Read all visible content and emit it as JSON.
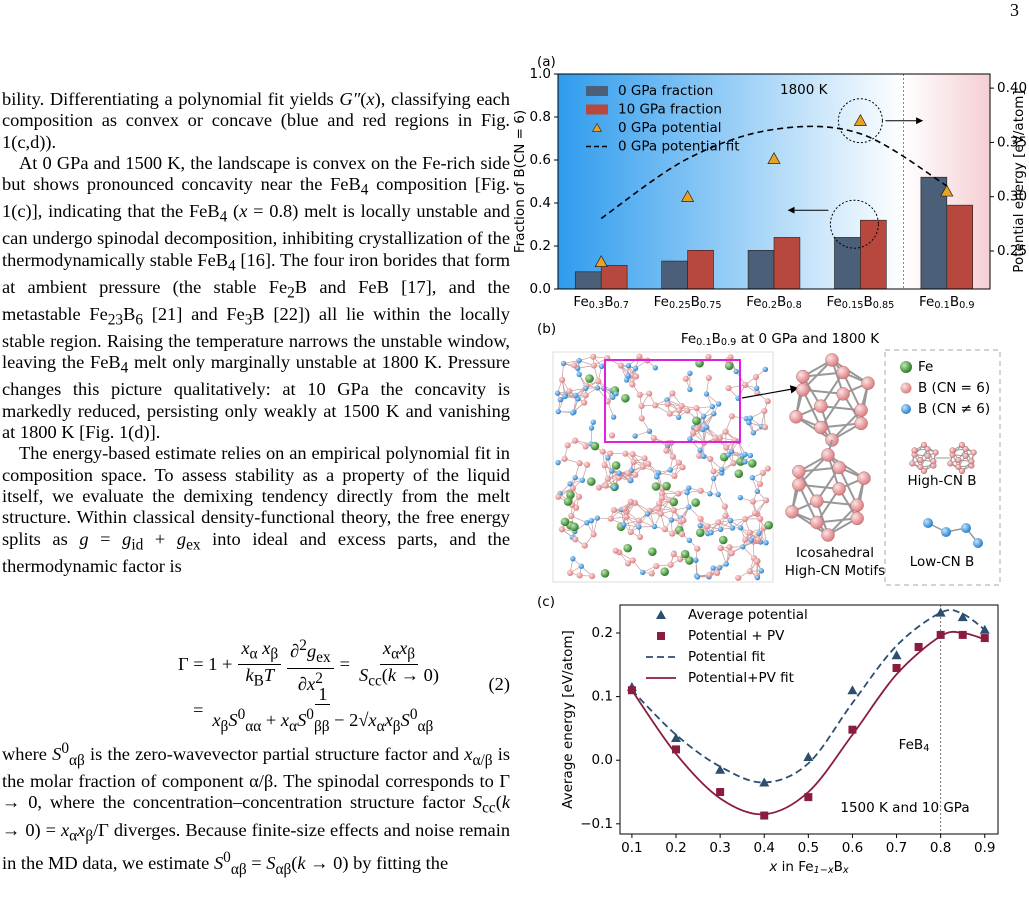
{
  "page_number": "3",
  "body": {
    "paragraphs": [
      "bility. Differentiating a polynomial fit yields <i>G″</i>(<i>x</i>), classifying each composition as convex or concave (blue and red regions in Fig. 1(c,d)).",
      "At 0 GPa and 1500 K, the landscape is convex on the Fe-rich side but shows pronounced concavity near the FeB<sub>4</sub> composition [Fig. 1(c)], indicating that the FeB<sub>4</sub> (<i>x</i> = 0.8) melt is locally unstable and can undergo spinodal decomposition, inhibiting crystallization of the thermodynamically stable FeB<sub>4</sub> [16]. The four iron borides that form at ambient pressure (the stable Fe<sub>2</sub>B and FeB [17], and the metastable Fe<sub>23</sub>B<sub>6</sub> [21] and Fe<sub>3</sub>B [22]) all lie within the locally stable region. Raising the temperature narrows the unstable window, leaving the FeB<sub>4</sub> melt only marginally unstable at 1800 K. Pressure changes this picture qualitatively: at 10 GPa the concavity is markedly reduced, persisting only weakly at 1500 K and vanishing at 1800 K [Fig. 1(d)].",
      "The energy-based estimate relies on an empirical polynomial fit in composition space. To assess stability as a property of the liquid itself, we evaluate the demixing tendency directly from the melt structure. Within classical density-functional theory, the free energy splits as <i>g</i> = <i>g</i><sub>id</sub> + <i>g</i><sub>ex</sub> into ideal and excess parts, and the thermodynamic factor is"
    ],
    "equation": {
      "lhs": "Γ = 1 +",
      "frac1_num": "<i>x</i><sub>α</sub> <i>x</i><sub>β</sub>",
      "frac1_den": "<i>k</i><sub>B</sub><i>T</i>",
      "frac2_num": "∂<sup>2</sup><i>g</i><sub>ex</sub>",
      "frac2_den": "∂<i>x</i><sup>2</sup>",
      "eq1": "=",
      "frac3_num": "<i>x</i><sub>α</sub><i>x</i><sub>β</sub>",
      "frac3_den": "<i>S</i><sub>cc</sub>(<i>k</i> → 0)",
      "eq2": "=",
      "frac4_num": "1",
      "frac4_den": "<i>x</i><sub>β</sub><i>S</i><sup>0</sup><sub>αα</sub> + <i>x</i><sub>α</sub><i>S</i><sup>0</sup><sub>ββ</sub> − 2√<i>x</i><sub>α</sub><i>x</i><sub>β</sub><i>S</i><sup>0</sup><sub>αβ</sub>",
      "number": "(2)"
    },
    "after": [
      "where <i>S</i><sup>0</sup><sub>αβ</sub> is the zero-wavevector partial structure factor and <i>x</i><sub>α/β</sub> is the molar fraction of component α/β. The spinodal corresponds to Γ → 0, where the concentration–concentration structure factor <i>S</i><sub>cc</sub>(<i>k</i> → 0) = <i>x</i><sub>α</sub><i>x</i><sub>β</sub>/Γ diverges. Because finite-size effects and noise remain in the MD data, we estimate <i>S</i><sup>0</sup><sub>αβ</sub> = <i>S</i><sub>αβ</sub>(<i>k</i> → 0) by fitting the"
    ]
  },
  "figure": {
    "panel_a": {
      "type": "bar",
      "label": "(a)",
      "annotation": "1800 K",
      "ylabel": "Fraction of B(CN = 6)",
      "y2label": "Potential energy [eV/atom]",
      "categories": [
        "Fe<sub>0.3</sub>B<sub>0.7</sub>",
        "Fe<sub>0.25</sub>B<sub>0.75</sub>",
        "Fe<sub>0.2</sub>B<sub>0.8</sub>",
        "Fe<sub>0.15</sub>B<sub>0.85</sub>",
        "Fe<sub>0.1</sub>B<sub>0.9</sub>"
      ],
      "ylim": [
        0,
        1.0
      ],
      "yticks": [
        {
          "value": 0,
          "label": "0.0"
        },
        0.2,
        0.4,
        0.6,
        0.8,
        {
          "value": 1,
          "label": "1.0"
        }
      ],
      "y2lim": [
        0.215,
        0.413
      ],
      "y2ticks": [
        0.25,
        {
          "value": 0.3,
          "label": "0.30"
        },
        0.35,
        {
          "value": 0.4,
          "label": "0.40"
        }
      ],
      "series": [
        {
          "name": "0 GPa fraction",
          "type": "bar",
          "color": "#4b5f78",
          "values": [
            0.08,
            0.13,
            0.18,
            0.24,
            0.52
          ]
        },
        {
          "name": "10 GPa fraction",
          "type": "bar",
          "color": "#b8483d",
          "values": [
            0.11,
            0.18,
            0.24,
            0.32,
            0.39
          ]
        },
        {
          "name": "0 GPa potential",
          "type": "scatter",
          "axis": "y2",
          "color": "#e8a323",
          "values": [
            0.24,
            0.3,
            0.335,
            0.37,
            0.305
          ]
        },
        {
          "name": "0 GPa potential fit",
          "type": "line",
          "axis": "y2",
          "color": "#000000",
          "values": [
            0.28,
            0.335,
            0.362,
            0.358,
            0.31
          ]
        }
      ]
    },
    "panel_b": {
      "label": "(b)",
      "title": "Fe<sub>0.1</sub>B<sub>0.9</sub> at 0 GPa and 1800 K",
      "legend": [
        "Fe",
        "B (CN = 6)",
        "B (CN ≠ 6)"
      ],
      "motif_label": [
        "Icosahedral",
        "High-CN Motifs"
      ],
      "high_cn": "High-CN B",
      "low_cn": "Low-CN B"
    },
    "panel_c": {
      "type": "line",
      "label": "(c)",
      "xlabel": "<i>x</i> in Fe<sub>1−<i>x</i></sub>B<sub><i>x</i></sub>",
      "ylabel": "Average energy [eV/atom]",
      "annotations": [
        "FeB<sub>4</sub>",
        "1500 K and 10 GPa"
      ],
      "vline": 0.8,
      "xlim": [
        0.073,
        0.93
      ],
      "xticks": [
        0.1,
        0.2,
        0.3,
        0.4,
        0.5,
        0.6,
        0.7,
        0.8,
        0.9
      ],
      "ylim": [
        -0.116,
        0.244
      ],
      "yticks": [
        {
          "value": -0.1,
          "label": "−0.1"
        },
        {
          "value": 0,
          "label": "0.0"
        },
        0.1,
        0.2
      ],
      "series": [
        {
          "name": "Average potential",
          "type": "scatter",
          "marker": "triangle",
          "color": "#2c4f70",
          "x": [
            0.1,
            0.2,
            0.3,
            0.4,
            0.5,
            0.6,
            0.7,
            0.8,
            0.85,
            0.9
          ],
          "values": [
            0.115,
            0.035,
            -0.015,
            -0.035,
            0.005,
            0.11,
            0.165,
            0.232,
            0.225,
            0.205
          ]
        },
        {
          "name": "Potential + PV",
          "type": "scatter",
          "marker": "square",
          "color": "#8a1c3e",
          "x": [
            0.1,
            0.2,
            0.3,
            0.4,
            0.5,
            0.6,
            0.7,
            0.75,
            0.8,
            0.85,
            0.9
          ],
          "values": [
            0.11,
            0.017,
            -0.05,
            -0.087,
            -0.058,
            0.048,
            0.145,
            0.178,
            0.197,
            0.197,
            0.192
          ]
        },
        {
          "name": "Potential fit",
          "type": "line",
          "dash": true,
          "color": "#2c4f70",
          "x": [
            0.1,
            0.2,
            0.3,
            0.4,
            0.5,
            0.6,
            0.7,
            0.8,
            0.85,
            0.9
          ],
          "values": [
            0.11,
            0.04,
            -0.01,
            -0.035,
            -0.005,
            0.09,
            0.18,
            0.232,
            0.23,
            0.205
          ]
        },
        {
          "name": "Potential+PV fit",
          "type": "line",
          "dash": false,
          "color": "#8a1c3e",
          "x": [
            0.1,
            0.2,
            0.3,
            0.4,
            0.5,
            0.6,
            0.7,
            0.8,
            0.85,
            0.9
          ],
          "values": [
            0.11,
            0.01,
            -0.06,
            -0.085,
            -0.05,
            0.04,
            0.135,
            0.195,
            0.2,
            0.19
          ]
        }
      ]
    }
  }
}
